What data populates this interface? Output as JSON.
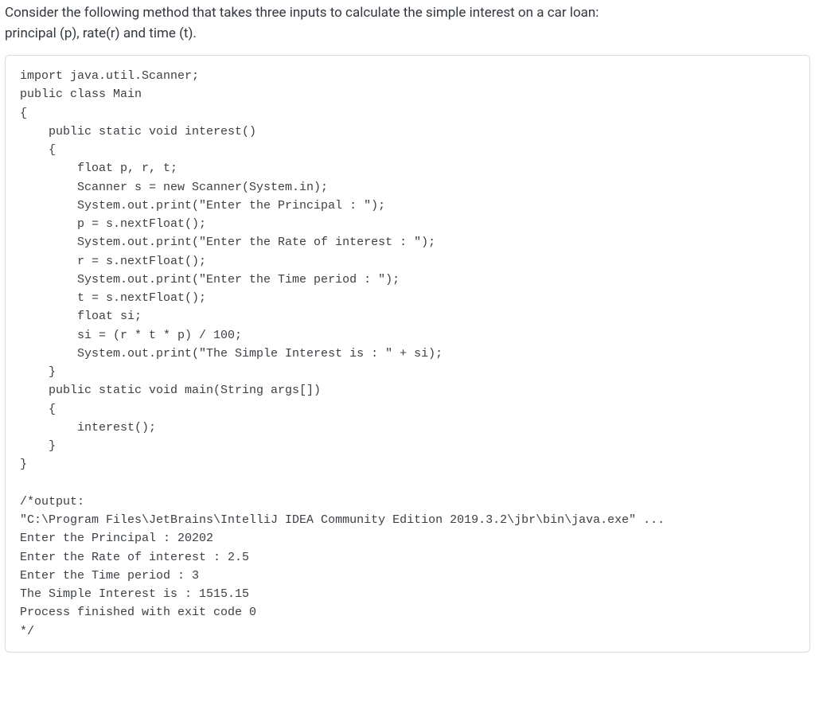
{
  "intro": {
    "line1": "Consider the following method that takes three inputs to calculate the simple interest on a car loan:",
    "line2": "principal (p), rate(r) and time (t)."
  },
  "code": {
    "l01": "import java.util.Scanner;",
    "l02": "public class Main",
    "l03": "{",
    "l04": "    public static void interest()",
    "l05": "    {",
    "l06": "        float p, r, t;",
    "l07": "        Scanner s = new Scanner(System.in);",
    "l08": "        System.out.print(\"Enter the Principal : \");",
    "l09": "        p = s.nextFloat();",
    "l10": "        System.out.print(\"Enter the Rate of interest : \");",
    "l11": "        r = s.nextFloat();",
    "l12": "        System.out.print(\"Enter the Time period : \");",
    "l13": "        t = s.nextFloat();",
    "l14": "        float si;",
    "l15": "        si = (r * t * p) / 100;",
    "l16": "        System.out.print(\"The Simple Interest is : \" + si);",
    "l17": "    }",
    "l18": "    public static void main(String args[])",
    "l19": "    {",
    "l20": "        interest();",
    "l21": "    }",
    "l22": "}",
    "l23": "",
    "l24": "/*output:",
    "l25": "\"C:\\Program Files\\JetBrains\\IntelliJ IDEA Community Edition 2019.3.2\\jbr\\bin\\java.exe\" ...",
    "l26": "Enter the Principal : 20202",
    "l27": "Enter the Rate of interest : 2.5",
    "l28": "Enter the Time period : 3",
    "l29": "The Simple Interest is : 1515.15",
    "l30": "Process finished with exit code 0",
    "l31": "*/"
  }
}
